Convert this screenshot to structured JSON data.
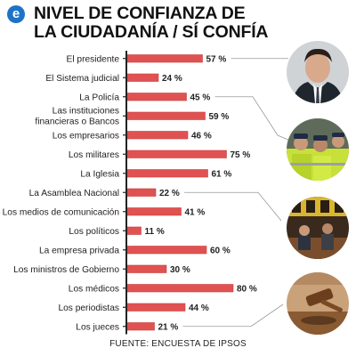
{
  "header": {
    "title_line1": "NIVEL DE CONFIANZA DE",
    "title_line2": "LA CIUDADANÍA / SÍ CONFÍA",
    "logo_letter": "e"
  },
  "source": "FUENTE: ENCUESTA DE IPSOS",
  "colors": {
    "bar": "#e05252",
    "bar_edge": "#c84040",
    "axis": "#222222",
    "leader": "#999999",
    "logo": "#1e73c8"
  },
  "photos": [
    {
      "icon": "president-portrait-photo"
    },
    {
      "icon": "police-officers-photo"
    },
    {
      "icon": "national-assembly-photo"
    },
    {
      "icon": "judge-gavel-photo"
    }
  ],
  "chart_data": {
    "type": "bar",
    "orientation": "horizontal",
    "categories": [
      [
        "El presidente"
      ],
      [
        "El Sistema judicial"
      ],
      [
        "La Policía"
      ],
      [
        "Las instituciones",
        "financieras o Bancos"
      ],
      [
        "Los empresarios"
      ],
      [
        "Los militares"
      ],
      [
        "La Iglesia"
      ],
      [
        "La Asamblea Nacional"
      ],
      [
        "Los medios de comunicación"
      ],
      [
        "Los políticos"
      ],
      [
        "La empresa privada"
      ],
      [
        "Los ministros de Gobierno"
      ],
      [
        "Los médicos"
      ],
      [
        "Los periodistas"
      ],
      [
        "Los jueces"
      ]
    ],
    "values": [
      57,
      24,
      45,
      59,
      46,
      75,
      61,
      22,
      41,
      11,
      60,
      30,
      80,
      44,
      21
    ],
    "value_labels": [
      "57 %",
      "24 %",
      "45 %",
      "59 %",
      "46 %",
      "75 %",
      "61 %",
      "22 %",
      "41 %",
      "11 %",
      "60 %",
      "30 %",
      "80 %",
      "44 %",
      "21 %"
    ],
    "xlim": [
      0,
      100
    ],
    "grid": false,
    "legend": "none"
  }
}
